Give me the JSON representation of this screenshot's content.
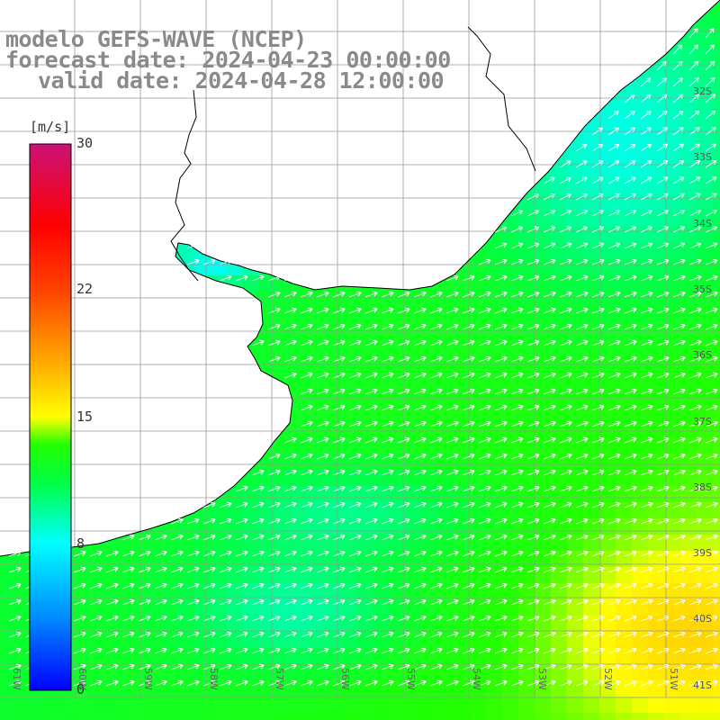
{
  "map": {
    "title_line1": "modelo GEFS-WAVE (NCEP)",
    "title_line2": "forecast date: 2024-04-23 00:00:00",
    "title_line3": "valid date: 2024-04-28 12:00:00",
    "variable": "wind speed and direction",
    "land_color": "#ffffff",
    "coastline_color": "#000000",
    "grid_color": "#aaaaaa",
    "arrow_color": "#ffffff",
    "latitude_labels": [
      "32S",
      "33S",
      "34S",
      "35S",
      "36S",
      "37S",
      "38S",
      "39S",
      "40S",
      "41S"
    ],
    "longitude_labels": [
      "61W",
      "60W",
      "59W",
      "58W",
      "57W",
      "56W",
      "55W",
      "54W",
      "53W",
      "52W",
      "51W"
    ],
    "dominant_wind_direction": "from the southwest"
  },
  "colorbar": {
    "units": "[m/s]",
    "min": 0,
    "max": 30,
    "tick_labels": [
      "30",
      "22",
      "15",
      "8",
      "0"
    ],
    "tick_values": [
      30,
      22,
      15,
      8,
      0
    ],
    "colors": [
      "#0000ff",
      "#00aaff",
      "#00ffff",
      "#00ff00",
      "#c8ff00",
      "#ffff00",
      "#ff8800",
      "#ff0000",
      "#cc1177"
    ]
  }
}
